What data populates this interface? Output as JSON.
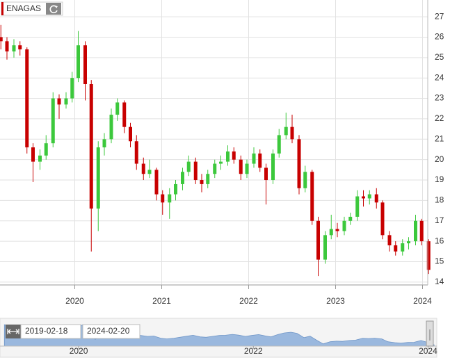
{
  "chart_data": {
    "type": "candlestick",
    "title": "ENAGAS",
    "x": [
      2019.15,
      2019.22,
      2019.3,
      2019.37,
      2019.45,
      2019.52,
      2019.6,
      2019.67,
      2019.75,
      2019.82,
      2019.9,
      2019.97,
      2020.04,
      2020.12,
      2020.19,
      2020.27,
      2020.34,
      2020.42,
      2020.49,
      2020.57,
      2020.64,
      2020.71,
      2020.79,
      2020.86,
      2020.94,
      2021.01,
      2021.09,
      2021.16,
      2021.24,
      2021.31,
      2021.39,
      2021.46,
      2021.53,
      2021.61,
      2021.68,
      2021.76,
      2021.83,
      2021.91,
      2021.98,
      2022.06,
      2022.13,
      2022.2,
      2022.28,
      2022.35,
      2022.43,
      2022.5,
      2022.58,
      2022.65,
      2022.73,
      2022.8,
      2022.88,
      2022.95,
      2023.02,
      2023.1,
      2023.17,
      2023.25,
      2023.32,
      2023.39,
      2023.47,
      2023.54,
      2023.62,
      2023.69,
      2023.77,
      2023.84,
      2023.92,
      2023.99,
      2024.07
    ],
    "open": [
      26.0,
      25.8,
      25.3,
      25.6,
      25.4,
      20.6,
      19.9,
      20.2,
      20.8,
      23.0,
      22.7,
      23.0,
      24.0,
      25.6,
      23.7,
      17.6,
      20.6,
      21.0,
      22.2,
      22.8,
      21.6,
      20.9,
      19.8,
      19.3,
      19.5,
      18.3,
      17.9,
      18.3,
      18.8,
      19.4,
      19.9,
      19.0,
      18.8,
      19.3,
      19.8,
      19.9,
      20.4,
      20.0,
      19.3,
      19.8,
      20.3,
      19.6,
      19.0,
      20.3,
      21.2,
      21.6,
      21.0,
      18.6,
      19.4,
      17.0,
      15.1,
      16.3,
      16.6,
      16.5,
      17.0,
      17.2,
      18.2,
      18.1,
      18.3,
      17.9,
      16.3,
      15.8,
      15.5,
      15.9,
      16.0,
      17.0,
      16.0
    ],
    "high": [
      26.6,
      26.0,
      25.9,
      25.8,
      25.5,
      20.8,
      20.5,
      21.2,
      23.3,
      23.2,
      23.3,
      24.3,
      26.3,
      25.8,
      23.9,
      20.9,
      21.3,
      22.5,
      23.0,
      22.9,
      21.8,
      21.2,
      20.1,
      20.0,
      19.6,
      18.5,
      18.6,
      19.0,
      19.6,
      20.2,
      20.1,
      19.3,
      19.5,
      20.0,
      20.2,
      20.7,
      20.6,
      20.2,
      20.0,
      20.6,
      20.5,
      19.8,
      20.5,
      21.5,
      22.3,
      22.2,
      21.2,
      19.7,
      19.5,
      17.2,
      16.5,
      17.3,
      16.9,
      17.2,
      17.4,
      18.5,
      18.5,
      18.5,
      18.6,
      18.0,
      16.5,
      16.0,
      16.1,
      16.2,
      17.3,
      17.1,
      16.1
    ],
    "low": [
      25.4,
      24.9,
      25.0,
      25.1,
      20.3,
      18.9,
      19.5,
      20.0,
      20.6,
      22.0,
      22.5,
      22.8,
      23.8,
      22.9,
      15.5,
      16.5,
      20.2,
      20.8,
      21.9,
      21.3,
      20.6,
      19.5,
      19.0,
      19.1,
      18.0,
      17.3,
      17.1,
      18.0,
      18.5,
      19.2,
      18.8,
      18.4,
      18.6,
      19.1,
      19.5,
      19.7,
      19.8,
      19.0,
      19.1,
      19.6,
      19.4,
      17.8,
      18.8,
      20.1,
      21.0,
      20.8,
      18.3,
      18.4,
      16.8,
      14.3,
      14.9,
      16.1,
      16.2,
      16.3,
      16.8,
      17.0,
      17.7,
      17.8,
      17.6,
      16.1,
      15.5,
      15.3,
      15.3,
      15.6,
      15.8,
      15.8,
      14.4
    ],
    "close": [
      25.8,
      25.3,
      25.6,
      25.4,
      20.6,
      19.9,
      20.2,
      20.8,
      23.0,
      22.7,
      23.0,
      24.0,
      25.6,
      23.7,
      17.6,
      20.6,
      21.0,
      22.2,
      22.8,
      21.6,
      20.9,
      19.8,
      19.3,
      19.5,
      18.3,
      17.9,
      18.3,
      18.8,
      19.4,
      19.9,
      19.0,
      18.8,
      19.3,
      19.8,
      19.9,
      20.4,
      20.0,
      19.3,
      19.8,
      20.3,
      19.6,
      19.0,
      20.3,
      21.2,
      21.6,
      21.0,
      18.6,
      19.4,
      17.0,
      15.1,
      16.3,
      16.6,
      16.5,
      17.0,
      17.2,
      18.2,
      18.1,
      18.3,
      17.9,
      16.3,
      15.8,
      15.5,
      15.9,
      16.0,
      17.0,
      16.0,
      14.6
    ],
    "up_color": "#3cc83c",
    "down_color": "#c80000",
    "xlim": [
      2019.14,
      2024.06
    ],
    "xticks": [
      2020,
      2021,
      2022,
      2023,
      2024
    ],
    "ylim": [
      13.86,
      27.82
    ],
    "yticks": [
      14,
      15,
      16,
      17,
      18,
      19,
      20,
      21,
      22,
      23,
      24,
      25,
      26,
      27
    ],
    "grid": true,
    "navigator": {
      "xlim": [
        2019.1,
        2024.1
      ],
      "xticks": [
        2020,
        2022,
        2024
      ],
      "start_label": "2019-02-18",
      "end_label": "2024-02-20",
      "color": "#9ab8de"
    }
  }
}
